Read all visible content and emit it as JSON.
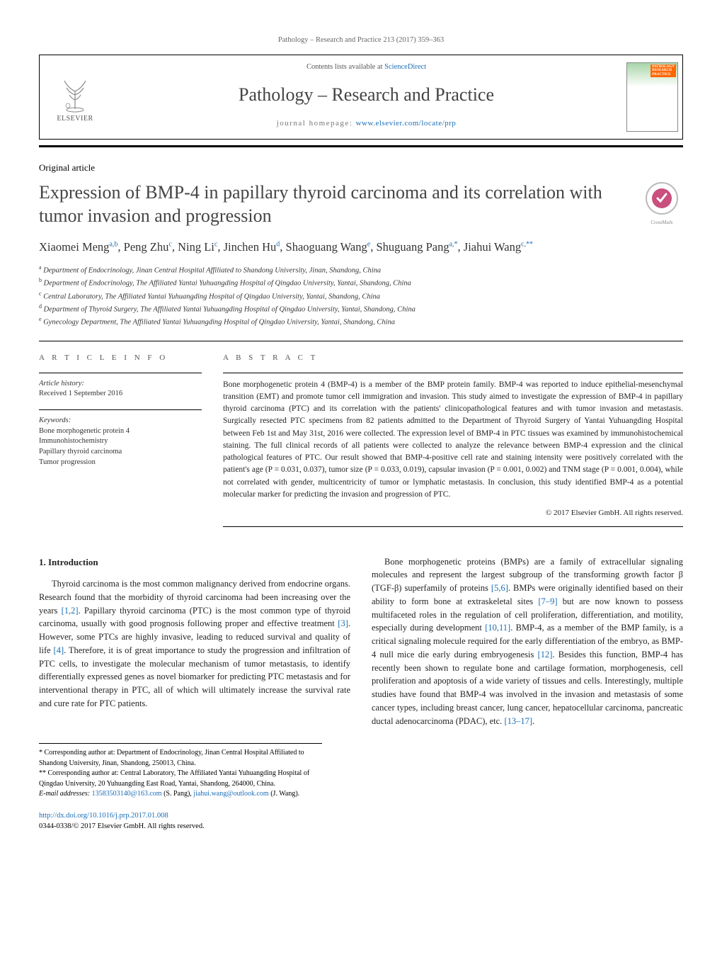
{
  "citation": "Pathology – Research and Practice 213 (2017) 359–363",
  "header": {
    "contents_prefix": "Contents lists available at ",
    "contents_link": "ScienceDirect",
    "journal_name": "Pathology – Research and Practice",
    "homepage_prefix": "journal homepage: ",
    "homepage_url": "www.elsevier.com/locate/prp",
    "elsevier_label": "ELSEVIER",
    "cover_label_line1": "PATHOLOGY",
    "cover_label_line2": "RESEARCH",
    "cover_label_line3": "PRACTICE"
  },
  "article_type": "Original article",
  "title": "Expression of BMP-4 in papillary thyroid carcinoma and its correlation with tumor invasion and progression",
  "crossmark_label": "CrossMark",
  "authors_html_parts": [
    {
      "name": "Xiaomei Meng",
      "sup": "a,b"
    },
    {
      "name": "Peng Zhu",
      "sup": "c"
    },
    {
      "name": "Ning Li",
      "sup": "c"
    },
    {
      "name": "Jinchen Hu",
      "sup": "d"
    },
    {
      "name": "Shaoguang Wang",
      "sup": "e"
    },
    {
      "name": "Shuguang Pang",
      "sup": "a,*"
    },
    {
      "name": "Jiahui Wang",
      "sup": "c,**"
    }
  ],
  "affiliations": [
    {
      "sup": "a",
      "text": "Department of Endocrinology, Jinan Central Hospital Affiliated to Shandong University, Jinan, Shandong, China"
    },
    {
      "sup": "b",
      "text": "Department of Endocrinology, The Affiliated Yantai Yuhuangding Hospital of Qingdao University, Yantai, Shandong, China"
    },
    {
      "sup": "c",
      "text": "Central Laboratory, The Affiliated Yantai Yuhuangding Hospital of Qingdao University, Yantai, Shandong, China"
    },
    {
      "sup": "d",
      "text": "Department of Thyroid Surgery, The Affiliated Yantai Yuhuangding Hospital of Qingdao University, Yantai, Shandong, China"
    },
    {
      "sup": "e",
      "text": "Gynecology Department, The Affiliated Yantai Yuhuangding Hospital of Qingdao University, Yantai, Shandong, China"
    }
  ],
  "article_info": {
    "heading": "a r t i c l e   i n f o",
    "history_label": "Article history:",
    "history_received": "Received 1 September 2016",
    "keywords_label": "Keywords:",
    "keywords": [
      "Bone morphogenetic protein 4",
      "Immunohistochemistry",
      "Papillary thyroid carcinoma",
      "Tumor progression"
    ]
  },
  "abstract": {
    "heading": "a b s t r a c t",
    "text": "Bone morphogenetic protein 4 (BMP-4) is a member of the BMP protein family. BMP-4 was reported to induce epithelial-mesenchymal transition (EMT) and promote tumor cell immigration and invasion. This study aimed to investigate the expression of BMP-4 in papillary thyroid carcinoma (PTC) and its correlation with the patients' clinicopathological features and with tumor invasion and metastasis. Surgically resected PTC specimens from 82 patients admitted to the Department of Thyroid Surgery of Yantai Yuhuangding Hospital between Feb 1st and May 31st, 2016 were collected. The expression level of BMP-4 in PTC tissues was examined by immunohistochemical staining. The full clinical records of all patients were collected to analyze the relevance between BMP-4 expression and the clinical pathological features of PTC. Our result showed that BMP-4-positive cell rate and staining intensity were positively correlated with the patient's age (P = 0.031, 0.037), tumor size (P = 0.033, 0.019), capsular invasion (P = 0.001, 0.002) and TNM stage (P = 0.001, 0.004), while not correlated with gender, multicentricity of tumor or lymphatic metastasis. In conclusion, this study identified BMP-4 as a potential molecular marker for predicting the invasion and progression of PTC.",
    "copyright": "© 2017 Elsevier GmbH. All rights reserved."
  },
  "body": {
    "section1_heading": "1.  Introduction",
    "p1_pre": "Thyroid carcinoma is the most common malignancy derived from endocrine organs. Research found that the morbidity of thyroid carcinoma had been increasing over the years ",
    "ref12": "[1,2]",
    "p1_mid1": ". Papillary thyroid carcinoma (PTC) is the most common type of thyroid carcinoma, usually with good prognosis following proper and effective treatment ",
    "ref3": "[3]",
    "p1_mid2": ". However, some PTCs are highly invasive, leading to reduced survival and quality of life ",
    "ref4": "[4]",
    "p1_post": ". Therefore, it is of great importance to study the progression and infiltration of PTC cells, to investigate the molecular mechanism of tumor metastasis, to identify differentially expressed genes as novel biomarker for pre",
    "p1b": "dicting PTC metastasis and for interventional therapy in PTC, all of which will ultimately increase the survival rate and cure rate for PTC patients.",
    "p2_pre": "Bone morphogenetic proteins (BMPs) are a family of extracellular signaling molecules and represent the largest subgroup of the transforming growth factor β (TGF-β) superfamily of proteins ",
    "ref56": "[5,6]",
    "p2_mid1": ". BMPs were originally identified based on their ability to form bone at extraskeletal sites ",
    "ref79": "[7–9]",
    "p2_mid2": " but are now known to possess multifaceted roles in the regulation of cell proliferation, differentiation, and motility, especially during development ",
    "ref1011": "[10,11]",
    "p2_mid3": ". BMP-4, as a member of the BMP family, is a critical signaling molecule required for the early differentiation of the embryo, as BMP-4 null mice die early during embryogenesis ",
    "ref12b": "[12]",
    "p2_mid4": ". Besides this function, BMP-4 has recently been shown to regulate bone and cartilage formation, morphogenesis, cell proliferation and apoptosis of a wide variety of tissues and cells. Interestingly, multiple studies have found that BMP-4 was involved in the invasion and metastasis of some cancer types, including breast cancer, lung cancer, hepatocellular carcinoma, pancreatic ductal adenocarcinoma (PDAC), etc. ",
    "ref1317": "[13–17]",
    "p2_post": "."
  },
  "footnotes": {
    "corr1_marker": "*",
    "corr1": "Corresponding author at: Department of Endocrinology, Jinan Central Hospital Affiliated to Shandong University, Jinan, Shandong, 250013, China.",
    "corr2_marker": "**",
    "corr2": "Corresponding author at: Central Laboratory, The Affiliated Yantai Yuhuangding Hospital of Qingdao University, 20 Yuhuangding East Road, Yantai, Shandong, 264000, China.",
    "email_label": "E-mail addresses: ",
    "email1": "13583503140@163.com",
    "email1_who": " (S. Pang), ",
    "email2": "jiahui.wang@outlook.com",
    "email2_who": " (J. Wang)."
  },
  "bottom": {
    "doi": "http://dx.doi.org/10.1016/j.prp.2017.01.008",
    "issn_line": "0344-0338/© 2017 Elsevier GmbH. All rights reserved."
  },
  "colors": {
    "link": "#1a6db5",
    "text": "#222222",
    "muted": "#666666",
    "orange": "#ff6600"
  }
}
